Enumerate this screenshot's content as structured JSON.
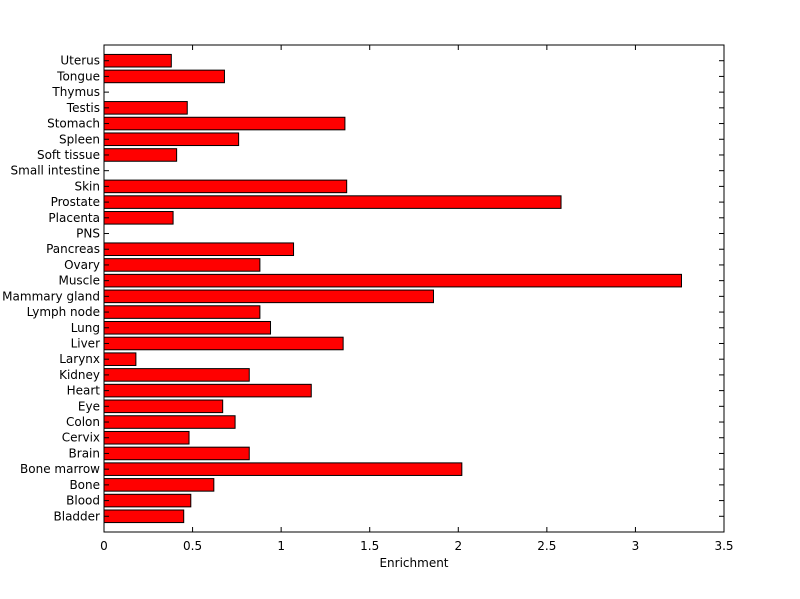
{
  "chart_data": {
    "type": "bar",
    "orientation": "horizontal",
    "title": "",
    "xlabel": "Enrichment",
    "ylabel": "",
    "xlim": [
      0,
      3.5
    ],
    "xticks": [
      "0",
      "0.5",
      "1",
      "1.5",
      "2",
      "2.5",
      "3",
      "3.5"
    ],
    "grid": false,
    "legend": "none",
    "bar_color": "#ff0000",
    "bar_edge_color": "#000000",
    "categories": [
      "Uterus",
      "Tongue",
      "Thymus",
      "Testis",
      "Stomach",
      "Spleen",
      "Soft tissue",
      "Small intestine",
      "Skin",
      "Prostate",
      "Placenta",
      "PNS",
      "Pancreas",
      "Ovary",
      "Muscle",
      "Mammary gland",
      "Lymph node",
      "Lung",
      "Liver",
      "Larynx",
      "Kidney",
      "Heart",
      "Eye",
      "Colon",
      "Cervix",
      "Brain",
      "Bone marrow",
      "Bone",
      "Blood",
      "Bladder"
    ],
    "values": [
      0.38,
      0.68,
      0,
      0.47,
      1.36,
      0.76,
      0.41,
      0,
      1.37,
      2.58,
      0.39,
      0,
      1.07,
      0.88,
      3.26,
      1.86,
      0.88,
      0.94,
      1.35,
      0.18,
      0.82,
      1.17,
      0.67,
      0.74,
      0.48,
      0.82,
      2.02,
      0.62,
      0.49,
      0.45
    ]
  }
}
